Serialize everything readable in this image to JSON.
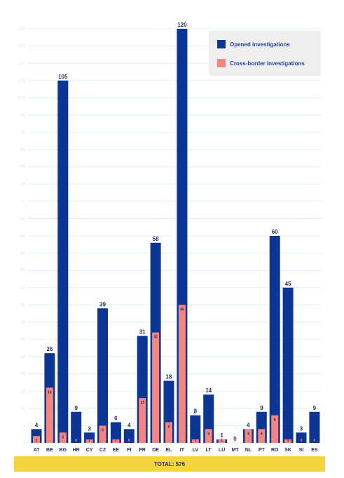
{
  "colors": {
    "opened": "#0d3596",
    "cross": "#f5857f",
    "grid": "#d8eef6",
    "tick": "#cde9f4"
  },
  "legend": {
    "opened_label": "Opened investigations",
    "cross_label": "Cross-border investigations"
  },
  "total_label": "TOTAL: 576",
  "chart_data": {
    "type": "bar",
    "categories": [
      "AT",
      "BE",
      "BG",
      "HR",
      "CY",
      "CZ",
      "EE",
      "FI",
      "FR",
      "DE",
      "EL",
      "IT",
      "LV",
      "LT",
      "LU",
      "MT",
      "NL",
      "PT",
      "RO",
      "SK",
      "SI",
      "ES"
    ],
    "series": [
      {
        "name": "Opened investigations",
        "values": [
          4,
          26,
          105,
          9,
          3,
          39,
          6,
          4,
          31,
          58,
          18,
          120,
          8,
          14,
          1,
          0,
          4,
          9,
          60,
          45,
          3,
          9
        ]
      },
      {
        "name": "Cross-border investigations",
        "values": [
          2,
          16,
          3,
          0,
          1,
          5,
          1,
          0,
          13,
          32,
          6,
          40,
          1,
          4,
          1,
          0,
          4,
          4,
          8,
          1,
          0,
          0
        ]
      }
    ],
    "yticks": [
      0,
      5,
      10,
      15,
      20,
      25,
      30,
      35,
      40,
      45,
      50,
      55,
      60,
      65,
      70,
      75,
      80,
      85,
      90,
      95,
      100,
      105,
      110,
      115,
      120
    ],
    "ylim": [
      0,
      120
    ],
    "grid": true,
    "legend_position": "top-right"
  }
}
